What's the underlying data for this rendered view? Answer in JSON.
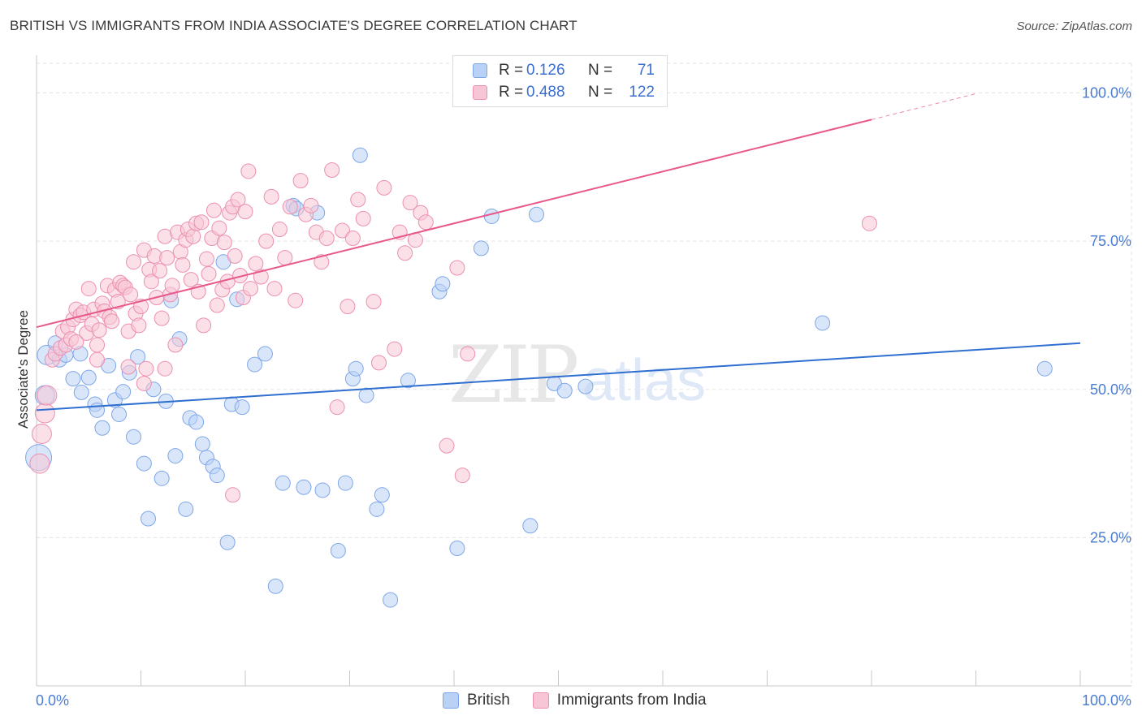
{
  "header": {
    "title": "BRITISH VS IMMIGRANTS FROM INDIA ASSOCIATE'S DEGREE CORRELATION CHART",
    "source": "Source: ZipAtlas.com"
  },
  "legend": {
    "rows": [
      {
        "r_label": "R =",
        "r_value": "0.126",
        "n_label": "N =",
        "n_value": "71",
        "color": "#b9d1f5",
        "border": "#7ea6e8"
      },
      {
        "r_label": "R =",
        "r_value": "0.488",
        "n_label": "N =",
        "n_value": "122",
        "color": "#f7c6d6",
        "border": "#ec8fb0"
      }
    ],
    "bottom": [
      "British",
      "Immigrants from India"
    ]
  },
  "watermark": {
    "zip": "ZIP",
    "atlas": "atlas"
  },
  "chart_data": {
    "type": "scatter",
    "title": "BRITISH VS IMMIGRANTS FROM INDIA ASSOCIATE'S DEGREE CORRELATION CHART",
    "xlabel": "",
    "ylabel": "Associate's Degree",
    "xlim": [
      0,
      100
    ],
    "ylim": [
      0,
      105
    ],
    "x_tick_labels": [
      "0.0%",
      "100.0%"
    ],
    "y_ticks": [
      25,
      50,
      75,
      100
    ],
    "y_tick_labels": [
      "25.0%",
      "50.0%",
      "75.0%",
      "100.0%"
    ],
    "grid": true,
    "legend_position": "top-center",
    "series": [
      {
        "name": "British",
        "color": "#7ea6e8",
        "fill": "#b9d1f5",
        "trend": {
          "x": [
            0,
            100
          ],
          "y": [
            46.5,
            57.8
          ],
          "color": "#2f6fd0"
        },
        "points": [
          [
            0.2,
            38.5
          ],
          [
            0.8,
            49.0
          ],
          [
            1.0,
            55.8
          ],
          [
            1.8,
            57.8
          ],
          [
            2.2,
            55.0
          ],
          [
            2.8,
            55.8
          ],
          [
            3.5,
            51.8
          ],
          [
            4.2,
            56.0
          ],
          [
            4.3,
            49.5
          ],
          [
            5.0,
            52.0
          ],
          [
            5.6,
            47.5
          ],
          [
            5.8,
            46.5
          ],
          [
            6.3,
            43.5
          ],
          [
            6.9,
            54.0
          ],
          [
            7.5,
            48.2
          ],
          [
            7.9,
            45.8
          ],
          [
            8.3,
            49.6
          ],
          [
            8.9,
            52.8
          ],
          [
            9.3,
            42.0
          ],
          [
            9.7,
            55.5
          ],
          [
            10.3,
            37.5
          ],
          [
            10.7,
            28.2
          ],
          [
            11.2,
            50.0
          ],
          [
            12.0,
            35.0
          ],
          [
            12.4,
            48.0
          ],
          [
            12.9,
            65.0
          ],
          [
            13.3,
            38.8
          ],
          [
            13.7,
            58.5
          ],
          [
            14.3,
            29.8
          ],
          [
            14.7,
            45.2
          ],
          [
            15.3,
            44.5
          ],
          [
            15.9,
            40.8
          ],
          [
            16.3,
            38.5
          ],
          [
            16.9,
            37.0
          ],
          [
            17.3,
            35.5
          ],
          [
            17.9,
            71.5
          ],
          [
            18.3,
            24.2
          ],
          [
            18.7,
            47.5
          ],
          [
            19.2,
            65.2
          ],
          [
            19.7,
            47.0
          ],
          [
            20.9,
            54.2
          ],
          [
            21.9,
            56.0
          ],
          [
            22.9,
            16.8
          ],
          [
            23.6,
            34.2
          ],
          [
            24.6,
            81.0
          ],
          [
            24.9,
            80.5
          ],
          [
            25.6,
            33.5
          ],
          [
            26.9,
            79.8
          ],
          [
            27.4,
            33.0
          ],
          [
            28.9,
            22.8
          ],
          [
            29.6,
            34.2
          ],
          [
            30.3,
            51.8
          ],
          [
            30.6,
            53.5
          ],
          [
            31.0,
            89.5
          ],
          [
            31.6,
            49.0
          ],
          [
            32.6,
            29.8
          ],
          [
            33.1,
            32.2
          ],
          [
            33.9,
            14.5
          ],
          [
            35.6,
            51.5
          ],
          [
            38.6,
            66.5
          ],
          [
            38.9,
            67.8
          ],
          [
            40.3,
            23.2
          ],
          [
            42.6,
            73.8
          ],
          [
            43.6,
            79.2
          ],
          [
            47.3,
            27.0
          ],
          [
            47.9,
            79.5
          ],
          [
            49.6,
            51.0
          ],
          [
            50.6,
            49.8
          ],
          [
            52.6,
            50.5
          ],
          [
            75.3,
            61.2
          ],
          [
            96.6,
            53.5
          ]
        ]
      },
      {
        "name": "Immigrants from India",
        "color": "#ec8fb0",
        "fill": "#f7c6d6",
        "trend": {
          "x": [
            0,
            80
          ],
          "y": [
            60.5,
            95.5
          ],
          "dashed_to": [
            90,
            100
          ],
          "color": "#e8588a"
        },
        "points": [
          [
            0.3,
            37.5
          ],
          [
            0.5,
            42.5
          ],
          [
            0.8,
            46.0
          ],
          [
            1.0,
            49.0
          ],
          [
            1.5,
            55.0
          ],
          [
            1.8,
            56.0
          ],
          [
            2.3,
            57.0
          ],
          [
            2.5,
            59.8
          ],
          [
            2.8,
            57.5
          ],
          [
            3.0,
            60.5
          ],
          [
            3.3,
            58.5
          ],
          [
            3.5,
            61.8
          ],
          [
            3.8,
            63.5
          ],
          [
            4.2,
            62.5
          ],
          [
            4.5,
            63.0
          ],
          [
            4.8,
            59.5
          ],
          [
            5.0,
            67.0
          ],
          [
            5.3,
            61.0
          ],
          [
            5.5,
            63.5
          ],
          [
            5.8,
            55.0
          ],
          [
            6.0,
            60.0
          ],
          [
            6.3,
            64.5
          ],
          [
            6.5,
            63.2
          ],
          [
            6.8,
            67.5
          ],
          [
            7.0,
            62.2
          ],
          [
            7.2,
            61.5
          ],
          [
            7.5,
            66.8
          ],
          [
            7.8,
            64.8
          ],
          [
            8.0,
            68.0
          ],
          [
            8.3,
            67.5
          ],
          [
            8.5,
            67.2
          ],
          [
            8.8,
            59.8
          ],
          [
            9.0,
            66.0
          ],
          [
            9.3,
            71.5
          ],
          [
            9.5,
            62.8
          ],
          [
            9.8,
            60.8
          ],
          [
            10.0,
            64.0
          ],
          [
            10.3,
            73.5
          ],
          [
            10.5,
            53.5
          ],
          [
            10.8,
            70.2
          ],
          [
            11.0,
            68.2
          ],
          [
            11.3,
            72.5
          ],
          [
            11.5,
            65.5
          ],
          [
            11.8,
            70.0
          ],
          [
            12.0,
            62.0
          ],
          [
            12.3,
            75.8
          ],
          [
            12.5,
            72.2
          ],
          [
            12.8,
            66.0
          ],
          [
            13.0,
            67.5
          ],
          [
            13.3,
            57.5
          ],
          [
            13.5,
            76.5
          ],
          [
            13.8,
            73.2
          ],
          [
            14.0,
            71.0
          ],
          [
            14.3,
            75.2
          ],
          [
            14.5,
            77.0
          ],
          [
            14.8,
            68.5
          ],
          [
            15.0,
            75.8
          ],
          [
            15.3,
            78.0
          ],
          [
            15.5,
            66.5
          ],
          [
            15.8,
            78.2
          ],
          [
            16.0,
            60.8
          ],
          [
            16.3,
            72.0
          ],
          [
            16.5,
            69.5
          ],
          [
            16.8,
            75.5
          ],
          [
            17.0,
            80.2
          ],
          [
            17.3,
            64.2
          ],
          [
            17.5,
            77.2
          ],
          [
            17.8,
            66.8
          ],
          [
            18.0,
            74.8
          ],
          [
            18.3,
            68.2
          ],
          [
            18.5,
            79.8
          ],
          [
            18.8,
            80.8
          ],
          [
            19.0,
            72.5
          ],
          [
            19.3,
            82.0
          ],
          [
            19.5,
            69.2
          ],
          [
            19.8,
            65.5
          ],
          [
            20.0,
            80.0
          ],
          [
            20.3,
            86.8
          ],
          [
            20.5,
            67.0
          ],
          [
            21.0,
            71.2
          ],
          [
            21.5,
            69.0
          ],
          [
            22.0,
            75.0
          ],
          [
            22.5,
            82.5
          ],
          [
            22.8,
            67.0
          ],
          [
            23.3,
            77.0
          ],
          [
            23.8,
            72.2
          ],
          [
            24.3,
            80.8
          ],
          [
            24.8,
            65.0
          ],
          [
            25.3,
            85.2
          ],
          [
            25.8,
            79.5
          ],
          [
            26.3,
            81.0
          ],
          [
            26.8,
            76.5
          ],
          [
            27.3,
            71.5
          ],
          [
            27.8,
            75.5
          ],
          [
            28.3,
            87.0
          ],
          [
            28.8,
            47.0
          ],
          [
            29.3,
            76.8
          ],
          [
            29.8,
            64.0
          ],
          [
            30.3,
            75.5
          ],
          [
            30.8,
            82.0
          ],
          [
            31.3,
            78.8
          ],
          [
            32.3,
            64.8
          ],
          [
            32.8,
            54.5
          ],
          [
            33.3,
            84.0
          ],
          [
            34.3,
            56.8
          ],
          [
            34.8,
            76.5
          ],
          [
            35.3,
            73.0
          ],
          [
            35.8,
            81.5
          ],
          [
            36.3,
            75.2
          ],
          [
            36.8,
            79.8
          ],
          [
            37.3,
            78.2
          ],
          [
            39.3,
            40.5
          ],
          [
            40.3,
            70.5
          ],
          [
            40.8,
            35.5
          ],
          [
            41.3,
            56.0
          ],
          [
            79.8,
            78.0
          ],
          [
            18.8,
            32.2
          ],
          [
            10.3,
            51.0
          ],
          [
            5.8,
            57.5
          ],
          [
            8.8,
            53.8
          ],
          [
            12.3,
            53.5
          ],
          [
            3.8,
            58.0
          ]
        ]
      }
    ]
  }
}
